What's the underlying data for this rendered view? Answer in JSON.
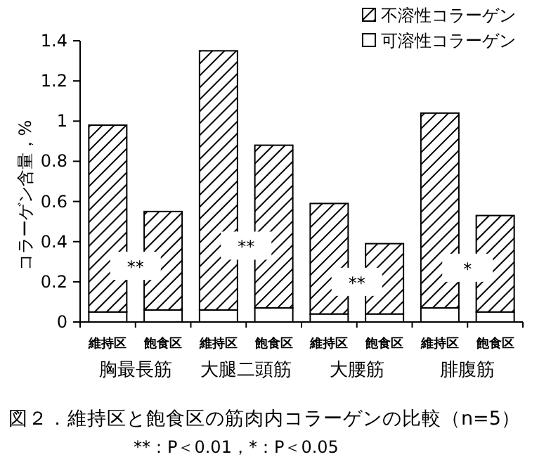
{
  "chart_data": {
    "type": "bar",
    "stacked": true,
    "title": "図２．維持区と飽食区の筋肉内コラーゲンの比較（n=5）",
    "ylabel": "コラーゲン含量，%",
    "categories": [
      "維持区",
      "飽食区",
      "維持区",
      "飽食区",
      "維持区",
      "飽食区",
      "維持区",
      "飽食区"
    ],
    "series": [
      {
        "name": "可溶性コラーゲン",
        "color": "#ffffff",
        "values": [
          0.05,
          0.06,
          0.06,
          0.07,
          0.04,
          0.04,
          0.07,
          0.05
        ]
      },
      {
        "name": "不溶性コラーゲン",
        "color": "#000000",
        "values": [
          0.93,
          0.49,
          1.29,
          0.81,
          0.55,
          0.35,
          0.97,
          0.48
        ]
      }
    ],
    "ylim": [
      0,
      1.4
    ],
    "yticks": [
      0,
      0.2,
      0.4,
      0.6,
      0.8,
      1,
      1.2,
      1.4
    ],
    "grid": false,
    "legend": "top right",
    "annotations": [
      "胸最長筋",
      "大腿二頭筋",
      "大腰筋",
      "腓腹筋",
      {
        "text": "**",
        "y": 0.28
      },
      {
        "text": "**",
        "y": 0.38
      },
      {
        "text": "**",
        "y": 0.2
      },
      {
        "text": "*",
        "y": 0.27
      },
      "**：P＜0.01，*：P＜0.05"
    ]
  }
}
